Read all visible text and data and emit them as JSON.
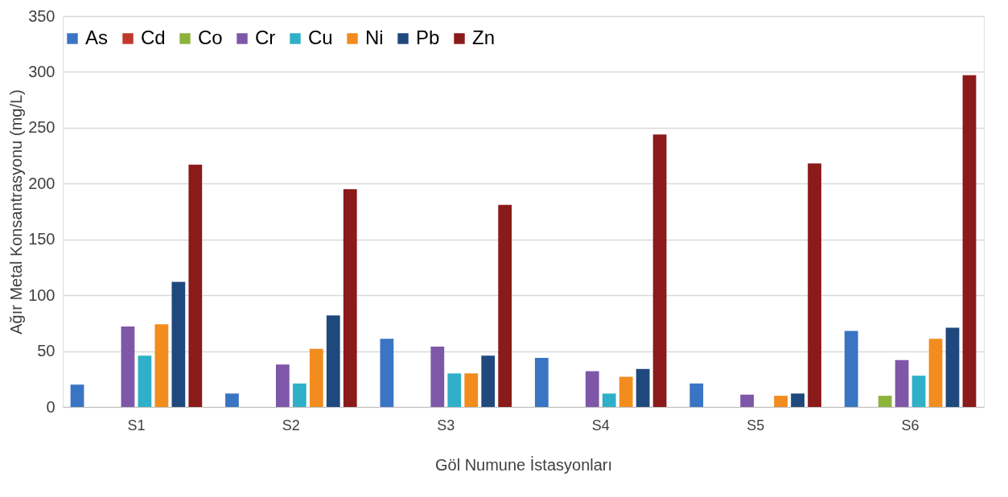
{
  "chart_data": {
    "type": "bar",
    "xlabel": "Göl Numune İstasyonları",
    "ylabel": "Ağır Metal Konsantrasyonu (mg/L)",
    "categories": [
      "S1",
      "S2",
      "S3",
      "S4",
      "S5",
      "S6"
    ],
    "series": [
      {
        "name": "As",
        "color": "#3a75c4",
        "values": [
          20,
          12,
          61,
          44,
          21,
          68
        ]
      },
      {
        "name": "Cd",
        "color": "#c0392b",
        "values": [
          0,
          0,
          0,
          0,
          0,
          0
        ]
      },
      {
        "name": "Co",
        "color": "#8db33a",
        "values": [
          0,
          0,
          0,
          0,
          0,
          10
        ]
      },
      {
        "name": "Cr",
        "color": "#7e57a8",
        "values": [
          72,
          38,
          54,
          32,
          11,
          42
        ]
      },
      {
        "name": "Cu",
        "color": "#2fb0c8",
        "values": [
          46,
          21,
          30,
          12,
          0,
          28
        ]
      },
      {
        "name": "Ni",
        "color": "#f28c1e",
        "values": [
          74,
          52,
          30,
          27,
          10,
          61
        ]
      },
      {
        "name": "Pb",
        "color": "#1f497d",
        "values": [
          112,
          82,
          46,
          34,
          12,
          71
        ]
      },
      {
        "name": "Zn",
        "color": "#8b1a1a",
        "values": [
          217,
          195,
          181,
          244,
          218,
          297
        ]
      }
    ],
    "ylim": [
      0,
      350
    ],
    "yticks": [
      0,
      50,
      100,
      150,
      200,
      250,
      300,
      350
    ],
    "grid": "y",
    "legend": "top"
  }
}
